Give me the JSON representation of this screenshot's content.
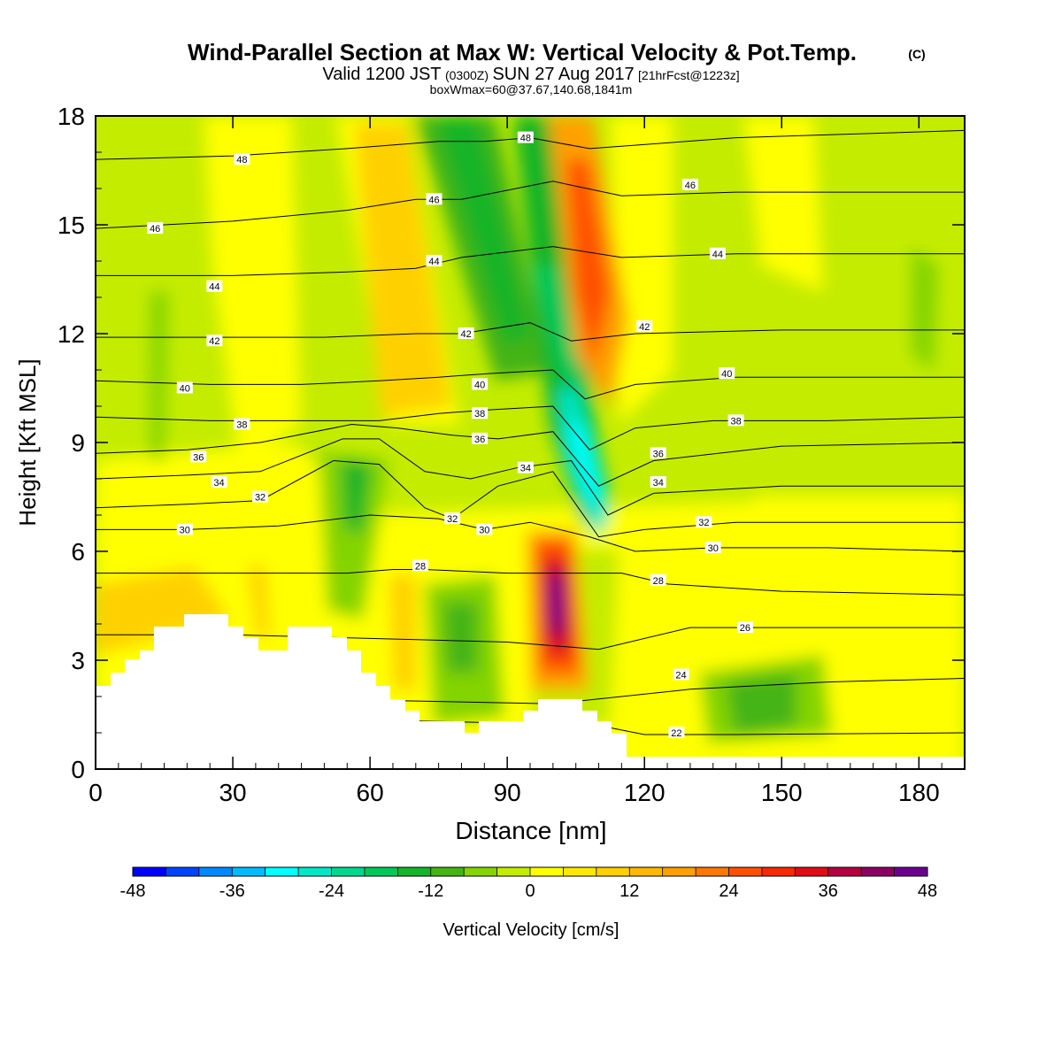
{
  "chart_data": {
    "type": "heatmap",
    "title_main": "Wind-Parallel Section at Max W: Vertical Velocity & Pot.Temp.",
    "title_mark": "(C)",
    "subtitle_a": "Valid 1200 JST",
    "subtitle_b": "(0300Z)",
    "subtitle_c": "SUN 27 Aug 2017",
    "subtitle_d": "[21hrFcst@1223z]",
    "subtitle2": "boxWmax=60@37.67,140.68,1841m",
    "xlabel": "Distance [nm]",
    "ylabel": "Height [Kft MSL]",
    "xlim": [
      0,
      190
    ],
    "ylim": [
      0,
      18
    ],
    "xticks": [
      0,
      30,
      60,
      90,
      120,
      150,
      180
    ],
    "yticks": [
      0,
      3,
      6,
      9,
      12,
      15,
      18
    ],
    "colorbar": {
      "label": "Vertical Velocity [cm/s]",
      "range": [
        -48,
        48
      ],
      "ticks": [
        "-48",
        "-36",
        "-24",
        "-12",
        "0",
        "12",
        "24",
        "36",
        "48"
      ],
      "colors": [
        "#0000ff",
        "#0044ff",
        "#0088ff",
        "#00bbff",
        "#00ffff",
        "#00e8c8",
        "#00d890",
        "#00c85a",
        "#14b428",
        "#44b414",
        "#84d400",
        "#c4ec00",
        "#ffff00",
        "#ffe800",
        "#ffd000",
        "#ffb800",
        "#ffa000",
        "#ff7800",
        "#ff5000",
        "#f82800",
        "#e00c14",
        "#b40040",
        "#8c0064",
        "#6c0090"
      ]
    },
    "series": [
      {
        "name": "22",
        "values": [
          [
            0,
            1.4
          ],
          [
            40,
            1.4
          ],
          [
            80,
            1.3
          ],
          [
            110,
            1.2
          ],
          [
            120,
            0.95
          ],
          [
            140,
            0.95
          ],
          [
            190,
            1.0
          ]
        ]
      },
      {
        "name": "24",
        "values": [
          [
            0,
            1.9
          ],
          [
            60,
            1.9
          ],
          [
            100,
            1.8
          ],
          [
            130,
            2.2
          ],
          [
            160,
            2.4
          ],
          [
            190,
            2.5
          ]
        ]
      },
      {
        "name": "26",
        "values": [
          [
            0,
            3.7
          ],
          [
            30,
            3.7
          ],
          [
            60,
            3.6
          ],
          [
            90,
            3.5
          ],
          [
            110,
            3.3
          ],
          [
            130,
            3.9
          ],
          [
            160,
            3.9
          ],
          [
            190,
            3.9
          ]
        ]
      },
      {
        "name": "28",
        "values": [
          [
            0,
            5.4
          ],
          [
            30,
            5.4
          ],
          [
            55,
            5.4
          ],
          [
            65,
            5.5
          ],
          [
            72,
            5.5
          ],
          [
            90,
            5.4
          ],
          [
            115,
            5.4
          ],
          [
            125,
            5.1
          ],
          [
            150,
            4.9
          ],
          [
            190,
            4.8
          ]
        ]
      },
      {
        "name": "30",
        "values": [
          [
            0,
            6.6
          ],
          [
            20,
            6.6
          ],
          [
            40,
            6.7
          ],
          [
            60,
            7.0
          ],
          [
            75,
            6.9
          ],
          [
            85,
            6.6
          ],
          [
            95,
            6.8
          ],
          [
            108,
            6.4
          ],
          [
            118,
            6.0
          ],
          [
            135,
            6.1
          ],
          [
            160,
            6.1
          ],
          [
            190,
            6.0
          ]
        ]
      },
      {
        "name": "32",
        "values": [
          [
            0,
            7.2
          ],
          [
            20,
            7.3
          ],
          [
            36,
            7.4
          ],
          [
            52,
            8.5
          ],
          [
            62,
            8.4
          ],
          [
            72,
            7.2
          ],
          [
            78,
            6.9
          ],
          [
            88,
            7.8
          ],
          [
            100,
            8.2
          ],
          [
            110,
            6.4
          ],
          [
            120,
            6.6
          ],
          [
            140,
            6.8
          ],
          [
            190,
            6.8
          ]
        ]
      },
      {
        "name": "34",
        "values": [
          [
            0,
            8.0
          ],
          [
            20,
            8.1
          ],
          [
            36,
            8.2
          ],
          [
            54,
            9.1
          ],
          [
            62,
            9.1
          ],
          [
            72,
            8.2
          ],
          [
            82,
            8.0
          ],
          [
            92,
            8.3
          ],
          [
            104,
            8.5
          ],
          [
            112,
            7.0
          ],
          [
            122,
            7.6
          ],
          [
            150,
            7.8
          ],
          [
            190,
            7.8
          ]
        ]
      },
      {
        "name": "36",
        "values": [
          [
            0,
            8.7
          ],
          [
            20,
            8.8
          ],
          [
            36,
            9.0
          ],
          [
            56,
            9.5
          ],
          [
            66,
            9.4
          ],
          [
            78,
            9.2
          ],
          [
            88,
            9.1
          ],
          [
            100,
            9.3
          ],
          [
            110,
            7.8
          ],
          [
            122,
            8.5
          ],
          [
            150,
            8.9
          ],
          [
            190,
            9.0
          ]
        ]
      },
      {
        "name": "38",
        "values": [
          [
            0,
            9.7
          ],
          [
            25,
            9.6
          ],
          [
            45,
            9.6
          ],
          [
            62,
            9.6
          ],
          [
            75,
            9.8
          ],
          [
            86,
            9.9
          ],
          [
            100,
            10.0
          ],
          [
            108,
            8.8
          ],
          [
            118,
            9.4
          ],
          [
            135,
            9.6
          ],
          [
            160,
            9.6
          ],
          [
            190,
            9.7
          ]
        ]
      },
      {
        "name": "40",
        "values": [
          [
            0,
            10.7
          ],
          [
            25,
            10.6
          ],
          [
            45,
            10.6
          ],
          [
            62,
            10.7
          ],
          [
            75,
            10.8
          ],
          [
            86,
            10.9
          ],
          [
            100,
            11.0
          ],
          [
            107,
            10.2
          ],
          [
            118,
            10.6
          ],
          [
            140,
            10.8
          ],
          [
            190,
            10.8
          ]
        ]
      },
      {
        "name": "42",
        "values": [
          [
            0,
            11.9
          ],
          [
            30,
            11.9
          ],
          [
            50,
            11.9
          ],
          [
            70,
            12.0
          ],
          [
            80,
            12.0
          ],
          [
            95,
            12.3
          ],
          [
            104,
            11.8
          ],
          [
            118,
            12.0
          ],
          [
            150,
            12.1
          ],
          [
            190,
            12.1
          ]
        ]
      },
      {
        "name": "44",
        "values": [
          [
            0,
            13.6
          ],
          [
            30,
            13.6
          ],
          [
            55,
            13.7
          ],
          [
            70,
            13.8
          ],
          [
            80,
            14.1
          ],
          [
            100,
            14.4
          ],
          [
            115,
            14.1
          ],
          [
            140,
            14.2
          ],
          [
            190,
            14.2
          ]
        ]
      },
      {
        "name": "46",
        "values": [
          [
            0,
            14.9
          ],
          [
            30,
            15.1
          ],
          [
            55,
            15.4
          ],
          [
            70,
            15.7
          ],
          [
            80,
            15.7
          ],
          [
            100,
            16.2
          ],
          [
            115,
            15.8
          ],
          [
            140,
            15.9
          ],
          [
            190,
            15.9
          ]
        ]
      },
      {
        "name": "48",
        "values": [
          [
            0,
            16.8
          ],
          [
            30,
            16.9
          ],
          [
            55,
            17.1
          ],
          [
            75,
            17.3
          ],
          [
            85,
            17.3
          ],
          [
            95,
            17.4
          ],
          [
            108,
            17.1
          ],
          [
            140,
            17.4
          ],
          [
            190,
            17.6
          ]
        ]
      }
    ],
    "contour_labels": [
      {
        "text": "48",
        "x": 32,
        "y": 16.8
      },
      {
        "text": "46",
        "x": 13,
        "y": 14.9
      },
      {
        "text": "44",
        "x": 26,
        "y": 13.3
      },
      {
        "text": "42",
        "x": 26,
        "y": 11.8
      },
      {
        "text": "40",
        "x": 19.5,
        "y": 10.5
      },
      {
        "text": "38",
        "x": 32,
        "y": 9.5
      },
      {
        "text": "36",
        "x": 22.5,
        "y": 8.6
      },
      {
        "text": "34",
        "x": 27,
        "y": 7.9
      },
      {
        "text": "32",
        "x": 36,
        "y": 7.5
      },
      {
        "text": "30",
        "x": 19.5,
        "y": 6.6
      },
      {
        "text": "46",
        "x": 74,
        "y": 15.7
      },
      {
        "text": "44",
        "x": 74,
        "y": 14.0
      },
      {
        "text": "42",
        "x": 81,
        "y": 12.0
      },
      {
        "text": "40",
        "x": 84,
        "y": 10.6
      },
      {
        "text": "38",
        "x": 84,
        "y": 9.8
      },
      {
        "text": "36",
        "x": 84,
        "y": 9.1
      },
      {
        "text": "34",
        "x": 94,
        "y": 8.3
      },
      {
        "text": "32",
        "x": 78,
        "y": 6.9
      },
      {
        "text": "30",
        "x": 85,
        "y": 6.6
      },
      {
        "text": "28",
        "x": 71,
        "y": 5.6
      },
      {
        "text": "48",
        "x": 94,
        "y": 17.4
      },
      {
        "text": "46",
        "x": 130,
        "y": 16.1
      },
      {
        "text": "44",
        "x": 136,
        "y": 14.2
      },
      {
        "text": "42",
        "x": 120,
        "y": 12.2
      },
      {
        "text": "40",
        "x": 138,
        "y": 10.9
      },
      {
        "text": "38",
        "x": 140,
        "y": 9.6
      },
      {
        "text": "36",
        "x": 123,
        "y": 8.7
      },
      {
        "text": "34",
        "x": 123,
        "y": 7.9
      },
      {
        "text": "32",
        "x": 133,
        "y": 6.8
      },
      {
        "text": "30",
        "x": 135,
        "y": 6.1
      },
      {
        "text": "28",
        "x": 123,
        "y": 5.2
      },
      {
        "text": "26",
        "x": 142,
        "y": 3.9
      },
      {
        "text": "24",
        "x": 128,
        "y": 2.6
      },
      {
        "text": "22",
        "x": 127,
        "y": 1.0
      }
    ],
    "grid": false
  }
}
